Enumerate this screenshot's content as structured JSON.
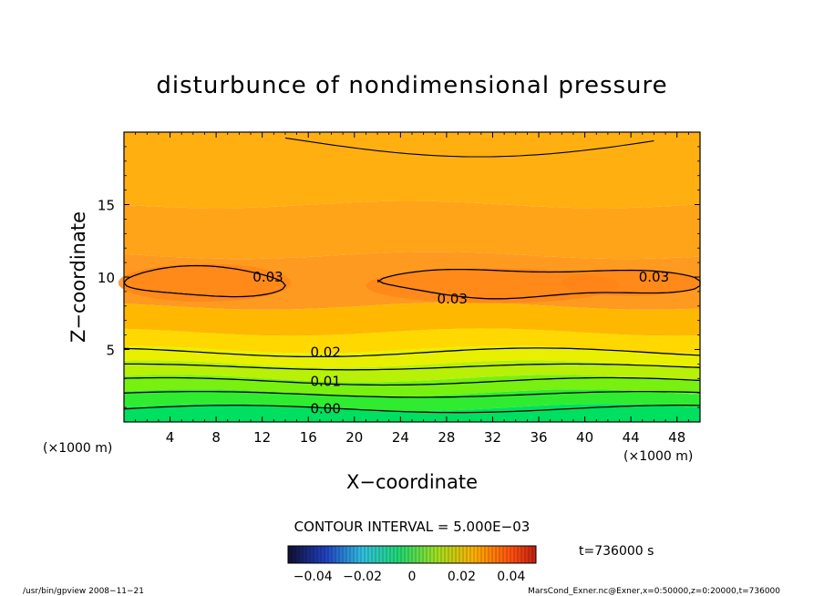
{
  "chart_data": {
    "type": "contour",
    "title": "disturbunce of nondimensional pressure",
    "xlabel": "X−coordinate",
    "ylabel": "Z−coordinate",
    "x_unit_left": "(×1000 m)",
    "x_unit_right": "(×1000 m)",
    "xlim": [
      0,
      50
    ],
    "ylim": [
      0,
      20
    ],
    "x_ticks": [
      4,
      8,
      12,
      16,
      20,
      24,
      28,
      32,
      36,
      40,
      44,
      48
    ],
    "x_tick_labels": [
      "4",
      "8",
      "12",
      "16",
      "20",
      "24",
      "28",
      "32",
      "36",
      "40",
      "44",
      "48"
    ],
    "y_ticks": [
      5,
      10,
      15
    ],
    "y_tick_labels": [
      "5",
      "10",
      "15"
    ],
    "contour_interval_text": "CONTOUR INTERVAL = 5.000E−03",
    "colorbar": {
      "range": [
        -0.05,
        0.05
      ],
      "ticks": [
        -0.04,
        -0.02,
        0,
        0.02,
        0.04
      ],
      "tick_labels": [
        "−0.04",
        "−0.02",
        "0",
        "0.02",
        "0.04"
      ]
    },
    "time_label": "t=736000 s",
    "contour_labels": [
      {
        "text": "0.03",
        "x": 12.5,
        "z": 10.0
      },
      {
        "text": "0.03",
        "x": 28.5,
        "z": 8.5
      },
      {
        "text": "0.03",
        "x": 46.0,
        "z": 10.0
      },
      {
        "text": "0.02",
        "x": 17.5,
        "z": 4.8
      },
      {
        "text": "0.01",
        "x": 17.5,
        "z": 2.8
      },
      {
        "text": "0.00",
        "x": 17.5,
        "z": 0.9
      }
    ],
    "filled_bands": [
      {
        "min_z": 0.0,
        "max_z": 1.0,
        "color": "#00e060"
      },
      {
        "min_z": 1.0,
        "max_z": 2.0,
        "color": "#30ec30"
      },
      {
        "min_z": 2.0,
        "max_z": 3.0,
        "color": "#78f010"
      },
      {
        "min_z": 3.0,
        "max_z": 4.0,
        "color": "#b8f008"
      },
      {
        "min_z": 4.0,
        "max_z": 5.0,
        "color": "#e8f000"
      },
      {
        "min_z": 5.0,
        "max_z": 6.2,
        "color": "#ffd800"
      },
      {
        "min_z": 6.2,
        "max_z": 8.0,
        "color": "#ffb800"
      },
      {
        "min_z": 8.0,
        "max_z": 11.5,
        "color": "#ff9a20"
      },
      {
        "min_z": 11.5,
        "max_z": 15.0,
        "color": "#ffa418"
      },
      {
        "min_z": 15.0,
        "max_z": 20.0,
        "color": "#ffb010"
      }
    ],
    "contour_levels_z": [
      {
        "z": 0.9,
        "wave": 0.25
      },
      {
        "z": 1.9,
        "wave": 0.2
      },
      {
        "z": 2.8,
        "wave": 0.25
      },
      {
        "z": 3.8,
        "wave": 0.2
      },
      {
        "z": 4.8,
        "wave": 0.3
      }
    ]
  },
  "footer": {
    "left": "/usr/bin/gpview   2008−11−21",
    "right": "MarsCond_Exner.nc@Exner,x=0:50000,z=0:20000,t=736000"
  }
}
